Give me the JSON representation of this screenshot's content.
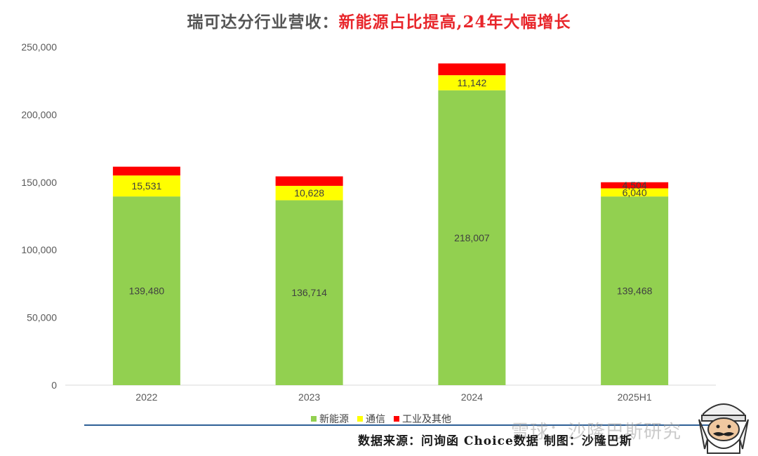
{
  "title": {
    "part1": "瑞可达分行业营收：",
    "part2": "新能源占比提高,24年大幅增长"
  },
  "chart_data": {
    "type": "bar",
    "stacked": true,
    "categories": [
      "2022",
      "2023",
      "2024",
      "2025H1"
    ],
    "series": [
      {
        "name": "新能源",
        "color": "#92d050",
        "values": [
          139480,
          136714,
          218007,
          139468
        ],
        "labels": [
          "139,480",
          "136,714",
          "218,007",
          "139,468"
        ]
      },
      {
        "name": "通信",
        "color": "#ffff00",
        "values": [
          15531,
          10628,
          11142,
          6040
        ],
        "labels": [
          "15,531",
          "10,628",
          "11,142",
          "6,040"
        ]
      },
      {
        "name": "工业及其他",
        "color": "#ff0000",
        "values": [
          6500,
          7000,
          8700,
          4504
        ],
        "labels": [
          "",
          "",
          "",
          "4,504"
        ]
      }
    ],
    "ylim": [
      0,
      250000
    ],
    "yticks": [
      "0",
      "50,000",
      "100,000",
      "150,000",
      "200,000",
      "250,000"
    ],
    "ytick_values": [
      0,
      50000,
      100000,
      150000,
      200000,
      250000
    ],
    "grid": false,
    "legend": "bottom"
  },
  "source": "数据来源：问询函 Choice数据 制图：沙隆巴斯",
  "watermark": "雪球：沙隆巴斯研究",
  "avatar_icon": "cartoon-man-avatar-icon"
}
